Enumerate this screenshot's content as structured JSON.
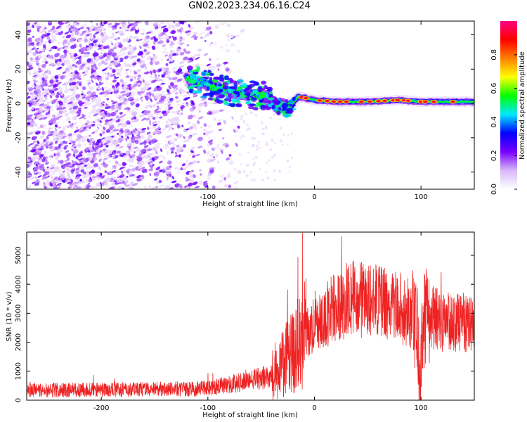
{
  "figure": {
    "title": "GN02.2023.234.06.16.C24"
  },
  "chart_data": [
    {
      "type": "heatmap",
      "name": "spectrogram",
      "xlabel": "Height of straight line (km)",
      "ylabel": "Frequency (Hz)",
      "xlim": [
        -270,
        150
      ],
      "ylim": [
        -50,
        48
      ],
      "xticks": [
        -200,
        -100,
        0,
        100
      ],
      "yticks": [
        -40,
        -20,
        0,
        20,
        40
      ],
      "colorbar": {
        "label": "Normalized spectral amplitude",
        "range": [
          0,
          1
        ],
        "ticks": [
          0.0,
          0.2,
          0.4,
          0.6,
          0.8
        ],
        "colormap": [
          "#ffffff",
          "#d8b8f8",
          "#7a00ff",
          "#0000ff",
          "#00e8ff",
          "#00ff00",
          "#ffff00",
          "#ff8000",
          "#ff0000",
          "#ff0080"
        ]
      },
      "ridge_frequency": [
        [
          -120,
          14
        ],
        [
          -100,
          11
        ],
        [
          -80,
          7
        ],
        [
          -60,
          5
        ],
        [
          -45,
          4
        ],
        [
          -35,
          -2
        ],
        [
          -25,
          -3
        ],
        [
          -15,
          4
        ],
        [
          0,
          2
        ],
        [
          20,
          1
        ],
        [
          50,
          1
        ],
        [
          80,
          2
        ],
        [
          100,
          1
        ],
        [
          150,
          1
        ]
      ],
      "grid": false
    },
    {
      "type": "line",
      "name": "snr",
      "xlabel": "Height of straight line (km)",
      "ylabel": "SNR (10 * v/v)",
      "xlim": [
        -270,
        150
      ],
      "ylim": [
        0,
        5800
      ],
      "xticks": [
        -200,
        -100,
        0,
        100
      ],
      "yticks": [
        0,
        1000,
        2000,
        3000,
        4000,
        5000
      ],
      "color": "#ee2222",
      "series": [
        {
          "x": [
            -270,
            -250,
            -200,
            -150,
            -110,
            -90,
            -70,
            -60,
            -50,
            -40,
            -30,
            -20,
            -15,
            -10,
            0,
            10,
            20,
            30,
            40,
            50,
            60,
            70,
            80,
            90,
            95,
            100,
            102,
            105,
            110,
            120,
            130,
            150
          ],
          "values": [
            350,
            350,
            360,
            380,
            390,
            470,
            620,
            700,
            750,
            900,
            1250,
            1650,
            2000,
            2150,
            2550,
            2900,
            3250,
            3450,
            3500,
            3450,
            3350,
            3250,
            3150,
            3000,
            2400,
            800,
            2800,
            3100,
            2850,
            2750,
            2700,
            2650
          ]
        }
      ],
      "grid": false
    }
  ]
}
